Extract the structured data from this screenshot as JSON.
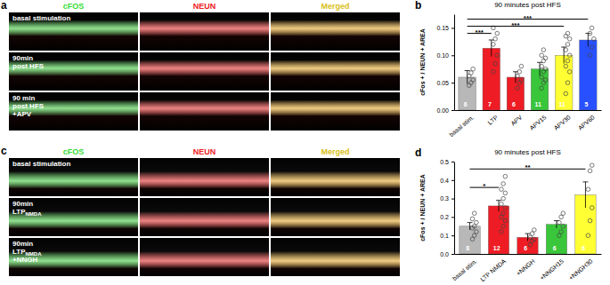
{
  "chart_data": [
    {
      "type": "bar",
      "panel_label": "b",
      "title": "90 minutes post HFS",
      "y_label": "cFos + / NEUN + AREA",
      "categories": [
        "basal stim.",
        "LTP",
        "APV",
        "APV15",
        "APV30",
        "APV60"
      ],
      "values": [
        0.06,
        0.113,
        0.06,
        0.075,
        0.1,
        0.128
      ],
      "errors": [
        0.012,
        0.015,
        0.01,
        0.012,
        0.015,
        0.012
      ],
      "n": [
        6,
        7,
        6,
        11,
        11,
        5
      ],
      "points": [
        [
          0.045,
          0.05,
          0.055,
          0.062,
          0.068,
          0.075
        ],
        [
          0.07,
          0.085,
          0.1,
          0.12,
          0.13,
          0.14,
          0.15
        ],
        [
          0.04,
          0.05,
          0.055,
          0.062,
          0.07,
          0.08
        ],
        [
          0.04,
          0.05,
          0.055,
          0.06,
          0.07,
          0.075,
          0.08,
          0.09,
          0.095,
          0.1,
          0.11
        ],
        [
          0.03,
          0.05,
          0.07,
          0.08,
          0.09,
          0.1,
          0.11,
          0.12,
          0.13,
          0.135,
          0.14
        ],
        [
          0.1,
          0.115,
          0.13,
          0.14,
          0.15
        ]
      ],
      "colors": [
        "#b8b8b8",
        "#ee1c24",
        "#ee1c24",
        "#39c63a",
        "#ffff33",
        "#2850ff"
      ],
      "ylim": [
        0,
        0.175
      ],
      "yticks": [
        {
          "value": 0,
          "label": "0.00"
        },
        {
          "value": 0.05,
          "label": "0.05"
        },
        {
          "value": 0.1,
          "label": "0.10"
        },
        {
          "value": 0.15,
          "label": "0.15"
        }
      ],
      "annotations": [
        {
          "from": 0,
          "to": 5,
          "y": 0.166,
          "label": "***"
        },
        {
          "from": 0,
          "to": 4,
          "y": 0.153,
          "label": "***"
        },
        {
          "from": 0,
          "to": 1,
          "y": 0.14,
          "label": "***"
        }
      ]
    },
    {
      "type": "bar",
      "panel_label": "d",
      "title": "90 minutes post HFS",
      "y_label": "cFos + / NEUN + AREA",
      "categories": [
        "basal stim.",
        "LTP NMDA",
        "+NNGH",
        "+NNGH15",
        "+NNGH30"
      ],
      "values": [
        0.15,
        0.26,
        0.09,
        0.16,
        0.32
      ],
      "errors": [
        0.02,
        0.03,
        0.02,
        0.02,
        0.07
      ],
      "n": [
        8,
        12,
        6,
        6,
        6
      ],
      "points": [
        [
          0.08,
          0.1,
          0.12,
          0.14,
          0.15,
          0.17,
          0.19,
          0.22
        ],
        [
          0.12,
          0.15,
          0.18,
          0.2,
          0.22,
          0.25,
          0.27,
          0.3,
          0.33,
          0.35,
          0.38,
          0.42
        ],
        [
          0.05,
          0.07,
          0.08,
          0.09,
          0.11,
          0.13
        ],
        [
          0.1,
          0.12,
          0.15,
          0.17,
          0.2,
          0.22
        ],
        [
          0.1,
          0.18,
          0.25,
          0.35,
          0.45,
          0.48
        ]
      ],
      "colors": [
        "#b8b8b8",
        "#ee1c24",
        "#ee1c24",
        "#39c63a",
        "#ffff33"
      ],
      "ylim": [
        0,
        0.5
      ],
      "yticks": [
        {
          "value": 0,
          "label": "0.0"
        },
        {
          "value": 0.1,
          "label": "0.1"
        },
        {
          "value": 0.2,
          "label": "0.2"
        },
        {
          "value": 0.3,
          "label": "0.3"
        },
        {
          "value": 0.4,
          "label": "0.4"
        },
        {
          "value": 0.5,
          "label": "0.5"
        }
      ],
      "annotations": [
        {
          "from": 0,
          "to": 4,
          "y": 0.46,
          "label": "**"
        },
        {
          "from": 0,
          "to": 1,
          "y": 0.36,
          "label": "*"
        }
      ]
    }
  ],
  "image_panels": [
    {
      "panel_label": "a",
      "headers": [
        {
          "text": "cFOS",
          "color": "#33dd33"
        },
        {
          "text": "NEUN",
          "color": "#ee2222"
        },
        {
          "text": "Merged",
          "color": "#d8c020"
        }
      ],
      "rows": [
        {
          "lines": [
            {
              "text": "basal stimulation"
            }
          ]
        },
        {
          "lines": [
            {
              "text": "90min"
            },
            {
              "text": "post HFS"
            }
          ]
        },
        {
          "lines": [
            {
              "text": "90 min"
            },
            {
              "text": "post HFS"
            },
            {
              "text": "+APV"
            }
          ]
        }
      ]
    },
    {
      "panel_label": "c",
      "headers": [
        {
          "text": "cFOS",
          "color": "#33dd33"
        },
        {
          "text": "NEUN",
          "color": "#ee2222"
        },
        {
          "text": "Merged",
          "color": "#d8c020"
        }
      ],
      "rows": [
        {
          "lines": [
            {
              "text": "basal stimulation"
            }
          ]
        },
        {
          "lines": [
            {
              "text": "90min"
            },
            {
              "text": "LTP",
              "sub": "NMDA"
            }
          ]
        },
        {
          "lines": [
            {
              "text": "90min"
            },
            {
              "text": "LTP",
              "sub": "NMDA"
            },
            {
              "text": "+NNGH"
            }
          ]
        }
      ]
    }
  ]
}
